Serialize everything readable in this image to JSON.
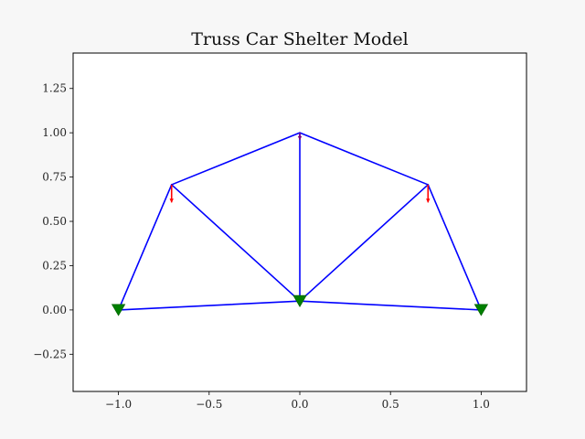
{
  "chart_data": {
    "type": "diagram",
    "title": "Truss Car Shelter Model",
    "xlim": [
      -1.25,
      1.25
    ],
    "ylim": [
      -0.46,
      1.45
    ],
    "xticks": [
      {
        "value": -1.0,
        "label": "−1.0"
      },
      {
        "value": -0.5,
        "label": "−0.5"
      },
      {
        "value": 0.0,
        "label": "0.0"
      },
      {
        "value": 0.5,
        "label": "0.5"
      },
      {
        "value": 1.0,
        "label": "1.0"
      }
    ],
    "yticks": [
      {
        "value": -0.25,
        "label": "−0.25"
      },
      {
        "value": 0.0,
        "label": "0.00"
      },
      {
        "value": 0.25,
        "label": "0.25"
      },
      {
        "value": 0.5,
        "label": "0.50"
      },
      {
        "value": 0.75,
        "label": "0.75"
      },
      {
        "value": 1.0,
        "label": "1.00"
      },
      {
        "value": 1.25,
        "label": "1.25"
      }
    ],
    "nodes": [
      {
        "id": "N1",
        "x": -1.0,
        "y": 0.0
      },
      {
        "id": "N2",
        "x": 0.0,
        "y": 0.05
      },
      {
        "id": "N3",
        "x": 1.0,
        "y": 0.0
      },
      {
        "id": "N4",
        "x": -0.707,
        "y": 0.707
      },
      {
        "id": "N5",
        "x": 0.0,
        "y": 1.0
      },
      {
        "id": "N6",
        "x": 0.707,
        "y": 0.707
      }
    ],
    "members": [
      [
        "N1",
        "N2"
      ],
      [
        "N2",
        "N3"
      ],
      [
        "N1",
        "N4"
      ],
      [
        "N4",
        "N5"
      ],
      [
        "N5",
        "N6"
      ],
      [
        "N6",
        "N3"
      ],
      [
        "N4",
        "N2"
      ],
      [
        "N5",
        "N2"
      ],
      [
        "N6",
        "N2"
      ]
    ],
    "supports": [
      "N1",
      "N2",
      "N3"
    ],
    "loads": [
      {
        "node": "N4",
        "dx": 0.0,
        "dy": -0.1,
        "color": "#ff0000"
      },
      {
        "node": "N6",
        "dx": 0.0,
        "dy": -0.1,
        "color": "#ff0000"
      },
      {
        "node": "N5",
        "dx": 0.0,
        "dy": -0.04,
        "color": "#800080"
      }
    ],
    "colors": {
      "member": "#0000ff",
      "support": "#008000",
      "background": "#f7f7f7",
      "axes": "#ffffff"
    }
  }
}
